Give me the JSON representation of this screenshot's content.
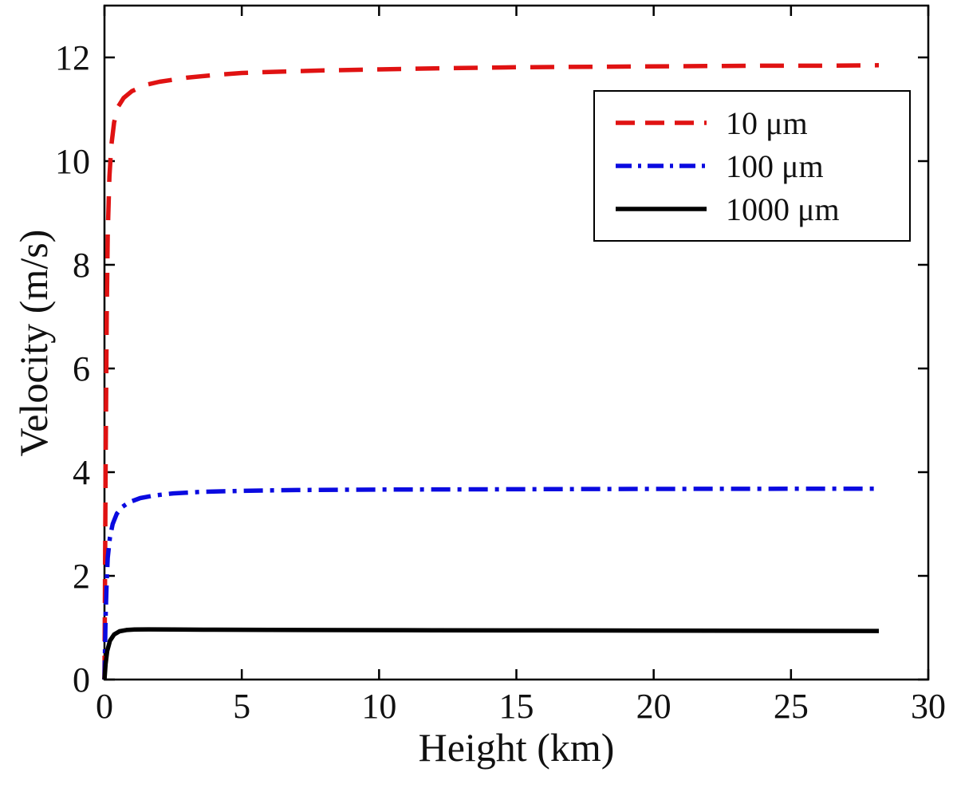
{
  "figure": {
    "background": "#ffffff"
  },
  "chart_data": {
    "type": "line",
    "title": "",
    "xlabel": "Height (km)",
    "ylabel": "Velocity (m/s)",
    "xlim": [
      0,
      30
    ],
    "ylim": [
      0,
      13
    ],
    "xticks": [
      0,
      5,
      10,
      15,
      20,
      25,
      30
    ],
    "yticks": [
      0,
      2,
      4,
      6,
      8,
      10,
      12
    ],
    "grid": false,
    "legend_position": "upper-right-inside",
    "series": [
      {
        "name": "10 μm",
        "color": "#e01212",
        "style": "dashed",
        "terminal_velocity_m_s": 11.85,
        "points": [
          [
            0,
            0
          ],
          [
            0.04,
            4.0
          ],
          [
            0.08,
            7.0
          ],
          [
            0.12,
            8.6
          ],
          [
            0.18,
            9.7
          ],
          [
            0.25,
            10.3
          ],
          [
            0.35,
            10.75
          ],
          [
            0.5,
            11.05
          ],
          [
            0.7,
            11.22
          ],
          [
            1.0,
            11.35
          ],
          [
            1.5,
            11.47
          ],
          [
            2,
            11.53
          ],
          [
            3,
            11.61
          ],
          [
            4,
            11.66
          ],
          [
            5,
            11.7
          ],
          [
            6,
            11.72
          ],
          [
            8,
            11.75
          ],
          [
            10,
            11.77
          ],
          [
            12,
            11.79
          ],
          [
            15,
            11.81
          ],
          [
            18,
            11.82
          ],
          [
            21,
            11.83
          ],
          [
            24,
            11.84
          ],
          [
            26,
            11.84
          ],
          [
            28.2,
            11.85
          ]
        ]
      },
      {
        "name": "100 μm",
        "color": "#0a0ae0",
        "style": "dash-dot",
        "terminal_velocity_m_s": 3.68,
        "points": [
          [
            0,
            0
          ],
          [
            0.04,
            1.2
          ],
          [
            0.08,
            1.9
          ],
          [
            0.12,
            2.35
          ],
          [
            0.2,
            2.75
          ],
          [
            0.3,
            3.0
          ],
          [
            0.45,
            3.2
          ],
          [
            0.65,
            3.33
          ],
          [
            0.9,
            3.42
          ],
          [
            1.3,
            3.5
          ],
          [
            1.8,
            3.55
          ],
          [
            2.5,
            3.59
          ],
          [
            3.5,
            3.62
          ],
          [
            5,
            3.64
          ],
          [
            7,
            3.655
          ],
          [
            10,
            3.665
          ],
          [
            14,
            3.67
          ],
          [
            18,
            3.675
          ],
          [
            22,
            3.678
          ],
          [
            25,
            3.68
          ],
          [
            28.2,
            3.68
          ]
        ]
      },
      {
        "name": "1000 μm",
        "color": "#000000",
        "style": "solid",
        "terminal_velocity_m_s": 0.95,
        "points": [
          [
            0,
            0
          ],
          [
            0.04,
            0.3
          ],
          [
            0.1,
            0.55
          ],
          [
            0.2,
            0.75
          ],
          [
            0.35,
            0.87
          ],
          [
            0.55,
            0.93
          ],
          [
            0.8,
            0.955
          ],
          [
            1.1,
            0.965
          ],
          [
            1.6,
            0.968
          ],
          [
            2.5,
            0.965
          ],
          [
            4,
            0.962
          ],
          [
            6,
            0.958
          ],
          [
            9,
            0.954
          ],
          [
            12,
            0.951
          ],
          [
            16,
            0.947
          ],
          [
            20,
            0.944
          ],
          [
            24,
            0.94
          ],
          [
            28.2,
            0.937
          ]
        ]
      }
    ]
  }
}
